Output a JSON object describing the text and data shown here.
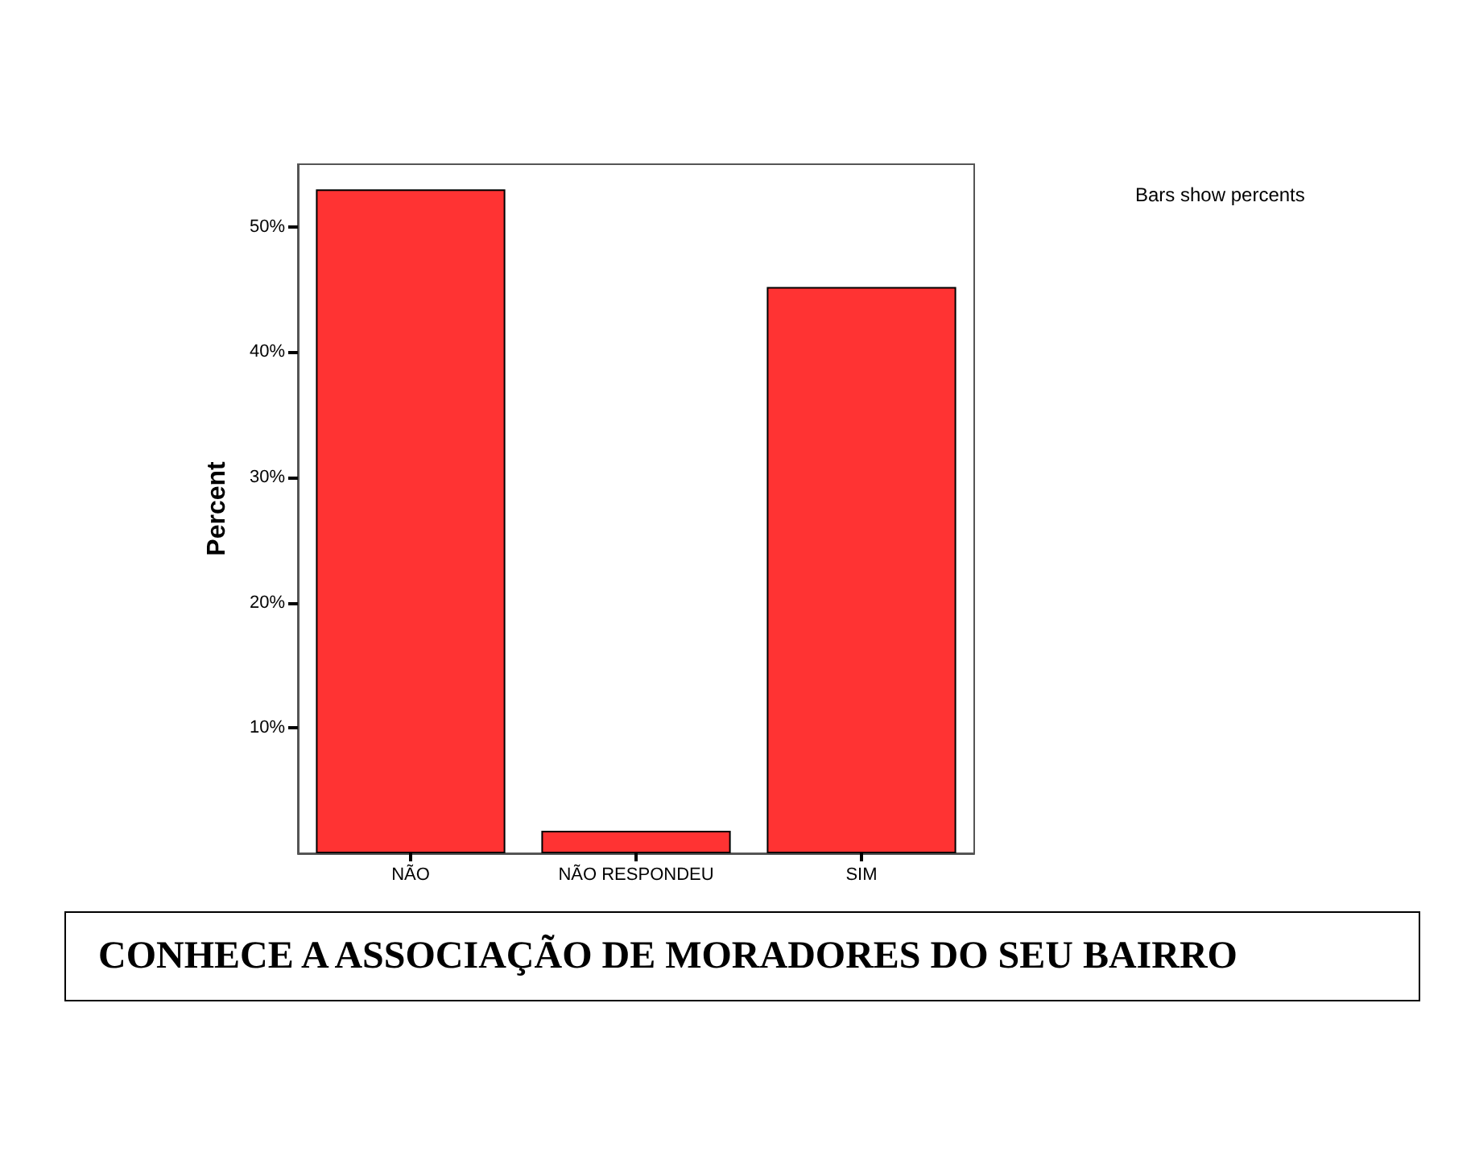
{
  "chart_data": {
    "type": "bar",
    "title": "CONHECE A ASSOCIAÇÃO DE MORADORES DO SEU BAIRRO",
    "ylabel": "Percent",
    "annotations": [
      "Bars show percents"
    ],
    "categories": [
      "NÃO",
      "NÃO RESPONDEU",
      "SIM"
    ],
    "values": [
      53.0,
      1.8,
      45.2
    ],
    "color": "#ff3333",
    "ylim": [
      0,
      55
    ],
    "yticks": [
      {
        "value": 10,
        "label": "10%"
      },
      {
        "value": 20,
        "label": "20%"
      },
      {
        "value": 30,
        "label": "30%"
      },
      {
        "value": 40,
        "label": "40%"
      },
      {
        "value": 50,
        "label": "50%"
      }
    ],
    "grid": false
  }
}
